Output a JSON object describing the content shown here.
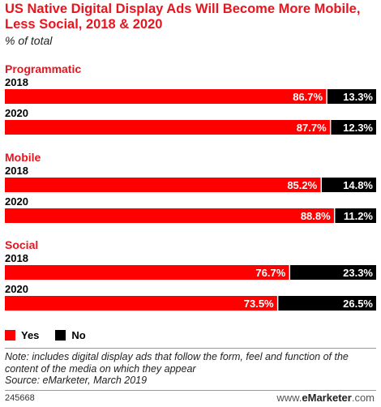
{
  "header": {
    "title": "US Native Digital Display Ads Will Become More Mobile, Less Social, 2018 & 2020",
    "subtitle": "% of total"
  },
  "footer": {
    "note": "Note: includes digital display ads that follow the form, feel and function of the content of the media on which they appear",
    "source": "Source: eMarketer, March 2019",
    "chart_id": "245668",
    "brand_prefix": "www.",
    "brand_name": "eMarketer",
    "brand_suffix": ".com"
  },
  "colors": {
    "yes": "#ff0000",
    "no": "#000000",
    "title": "#e8141e"
  },
  "chart_data": {
    "type": "bar",
    "orientation": "horizontal",
    "stacked": true,
    "title": "US Native Digital Display Ads Will Become More Mobile, Less Social, 2018 & 2020",
    "subtitle": "% of total",
    "legend": [
      "Yes",
      "No"
    ],
    "legend_position": "bottom-left",
    "xlim": [
      0,
      100
    ],
    "groups": [
      {
        "name": "Programmatic",
        "rows": [
          {
            "label": "2018",
            "yes": 86.7,
            "no": 13.3,
            "yes_label": "86.7%",
            "no_label": "13.3%"
          },
          {
            "label": "2020",
            "yes": 87.7,
            "no": 12.3,
            "yes_label": "87.7%",
            "no_label": "12.3%"
          }
        ]
      },
      {
        "name": "Mobile",
        "rows": [
          {
            "label": "2018",
            "yes": 85.2,
            "no": 14.8,
            "yes_label": "85.2%",
            "no_label": "14.8%"
          },
          {
            "label": "2020",
            "yes": 88.8,
            "no": 11.2,
            "yes_label": "88.8%",
            "no_label": "11.2%"
          }
        ]
      },
      {
        "name": "Social",
        "rows": [
          {
            "label": "2018",
            "yes": 76.7,
            "no": 23.3,
            "yes_label": "76.7%",
            "no_label": "23.3%"
          },
          {
            "label": "2020",
            "yes": 73.5,
            "no": 26.5,
            "yes_label": "73.5%",
            "no_label": "26.5%"
          }
        ]
      }
    ]
  }
}
